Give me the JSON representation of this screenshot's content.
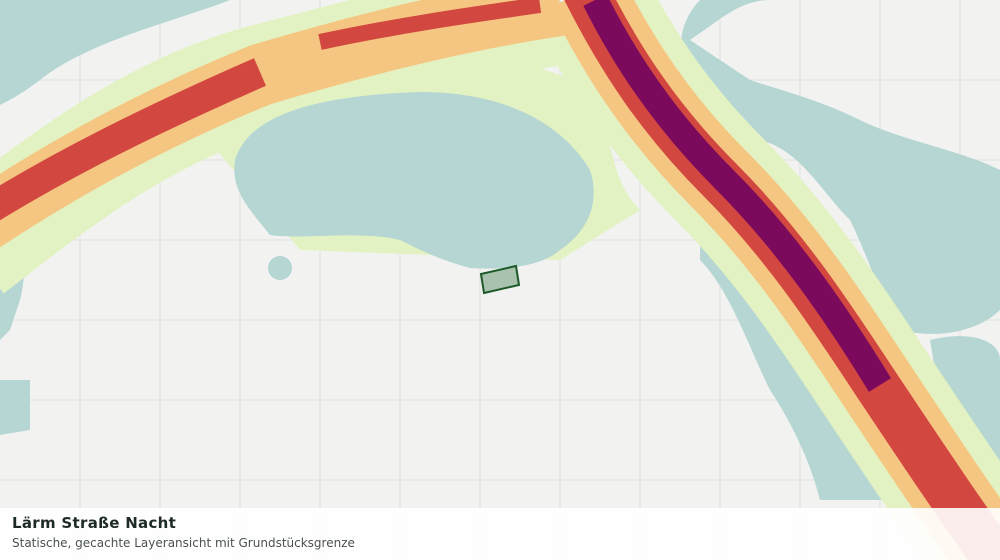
{
  "title": "Lärm Straße Nacht",
  "subtitle": "Statische, gecachte Layeransicht mit Grundstücksgrenze"
}
